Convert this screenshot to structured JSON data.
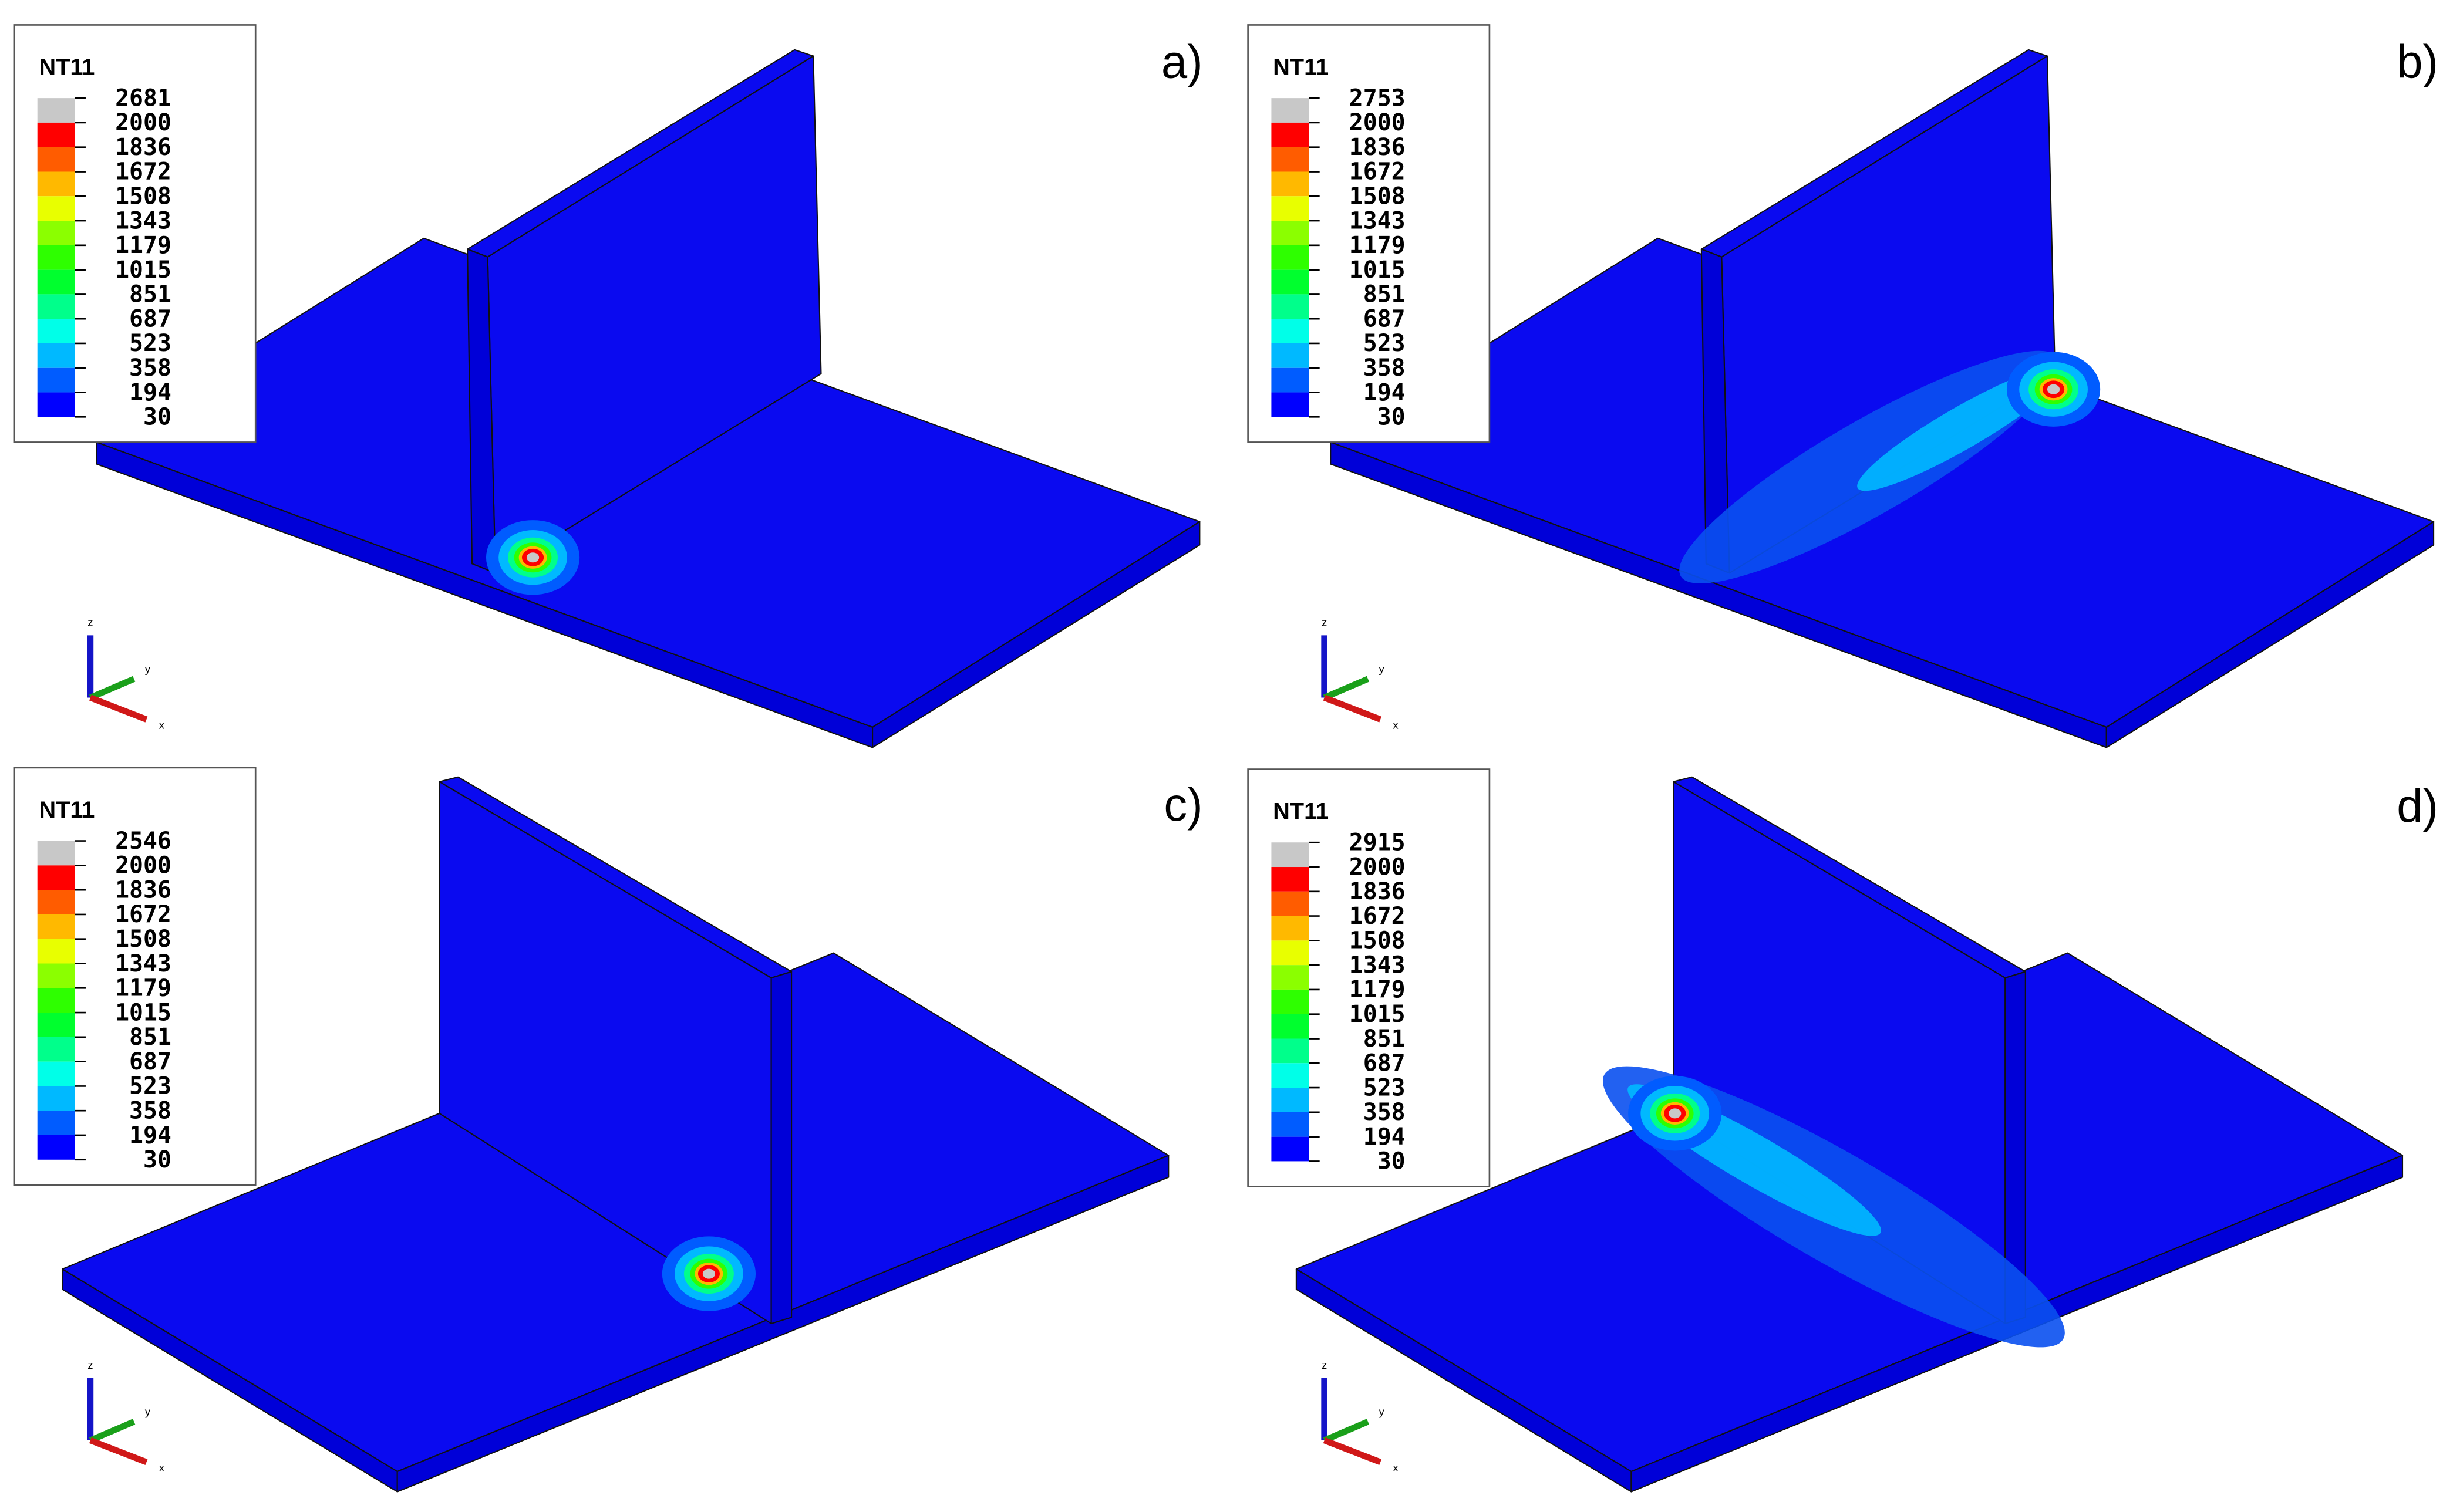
{
  "panels": [
    {
      "label": "a)",
      "legend_title": "NT11",
      "legend_values": [
        "2681",
        "2000",
        "1836",
        "1672",
        "1508",
        "1343",
        "1179",
        "1015",
        "851",
        "687",
        "523",
        "358",
        "194",
        "30"
      ],
      "axes": [
        "z",
        "y",
        "x"
      ]
    },
    {
      "label": "b)",
      "legend_title": "NT11",
      "legend_values": [
        "2753",
        "2000",
        "1836",
        "1672",
        "1508",
        "1343",
        "1179",
        "1015",
        "851",
        "687",
        "523",
        "358",
        "194",
        "30"
      ],
      "axes": [
        "z",
        "y",
        "x"
      ]
    },
    {
      "label": "c)",
      "legend_title": "NT11",
      "legend_values": [
        "2546",
        "2000",
        "1836",
        "1672",
        "1508",
        "1343",
        "1179",
        "1015",
        "851",
        "687",
        "523",
        "358",
        "194",
        "30"
      ],
      "axes": [
        "z",
        "y",
        "x"
      ]
    },
    {
      "label": "d)",
      "legend_title": "NT11",
      "legend_values": [
        "2915",
        "2000",
        "1836",
        "1672",
        "1508",
        "1343",
        "1179",
        "1015",
        "851",
        "687",
        "523",
        "358",
        "194",
        "30"
      ],
      "axes": [
        "z",
        "y",
        "x"
      ]
    }
  ]
}
